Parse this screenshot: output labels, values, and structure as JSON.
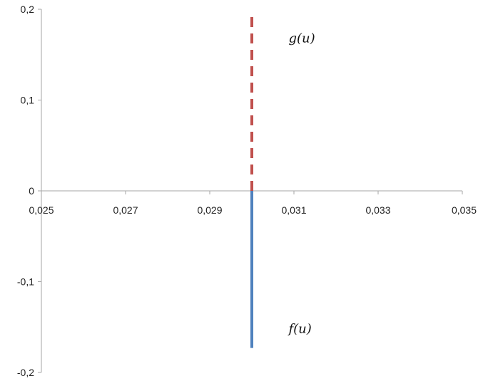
{
  "chart_data": {
    "type": "line",
    "title": "",
    "xlabel": "",
    "ylabel": "",
    "xlim": [
      0.025,
      0.035
    ],
    "ylim": [
      -0.2,
      0.2
    ],
    "grid": false,
    "x_ticks": [
      {
        "value": 0.025,
        "label": "0,025"
      },
      {
        "value": 0.027,
        "label": "0,027"
      },
      {
        "value": 0.029,
        "label": "0,029"
      },
      {
        "value": 0.031,
        "label": "0,031"
      },
      {
        "value": 0.033,
        "label": "0,033"
      },
      {
        "value": 0.035,
        "label": "0,035"
      }
    ],
    "y_ticks": [
      {
        "value": 0.2,
        "label": "0,2"
      },
      {
        "value": 0.1,
        "label": "0,1"
      },
      {
        "value": 0,
        "label": "0"
      },
      {
        "value": -0.1,
        "label": "-0,1"
      },
      {
        "value": -0.2,
        "label": "-0,2"
      }
    ],
    "series": [
      {
        "x": [
          0.03,
          0.03
        ],
        "y": [
          0,
          0.195
        ],
        "color": "#c0504d",
        "style": "dashed"
      },
      {
        "x": [
          0.03,
          0.03
        ],
        "y": [
          0,
          -0.173
        ],
        "color": "#4f81bd",
        "style": "solid"
      }
    ],
    "annotations": [
      {
        "text": "g(u)",
        "x": 0.0305,
        "y": 0.17
      },
      {
        "text": "f(u)",
        "x": 0.0305,
        "y": -0.15
      }
    ]
  }
}
